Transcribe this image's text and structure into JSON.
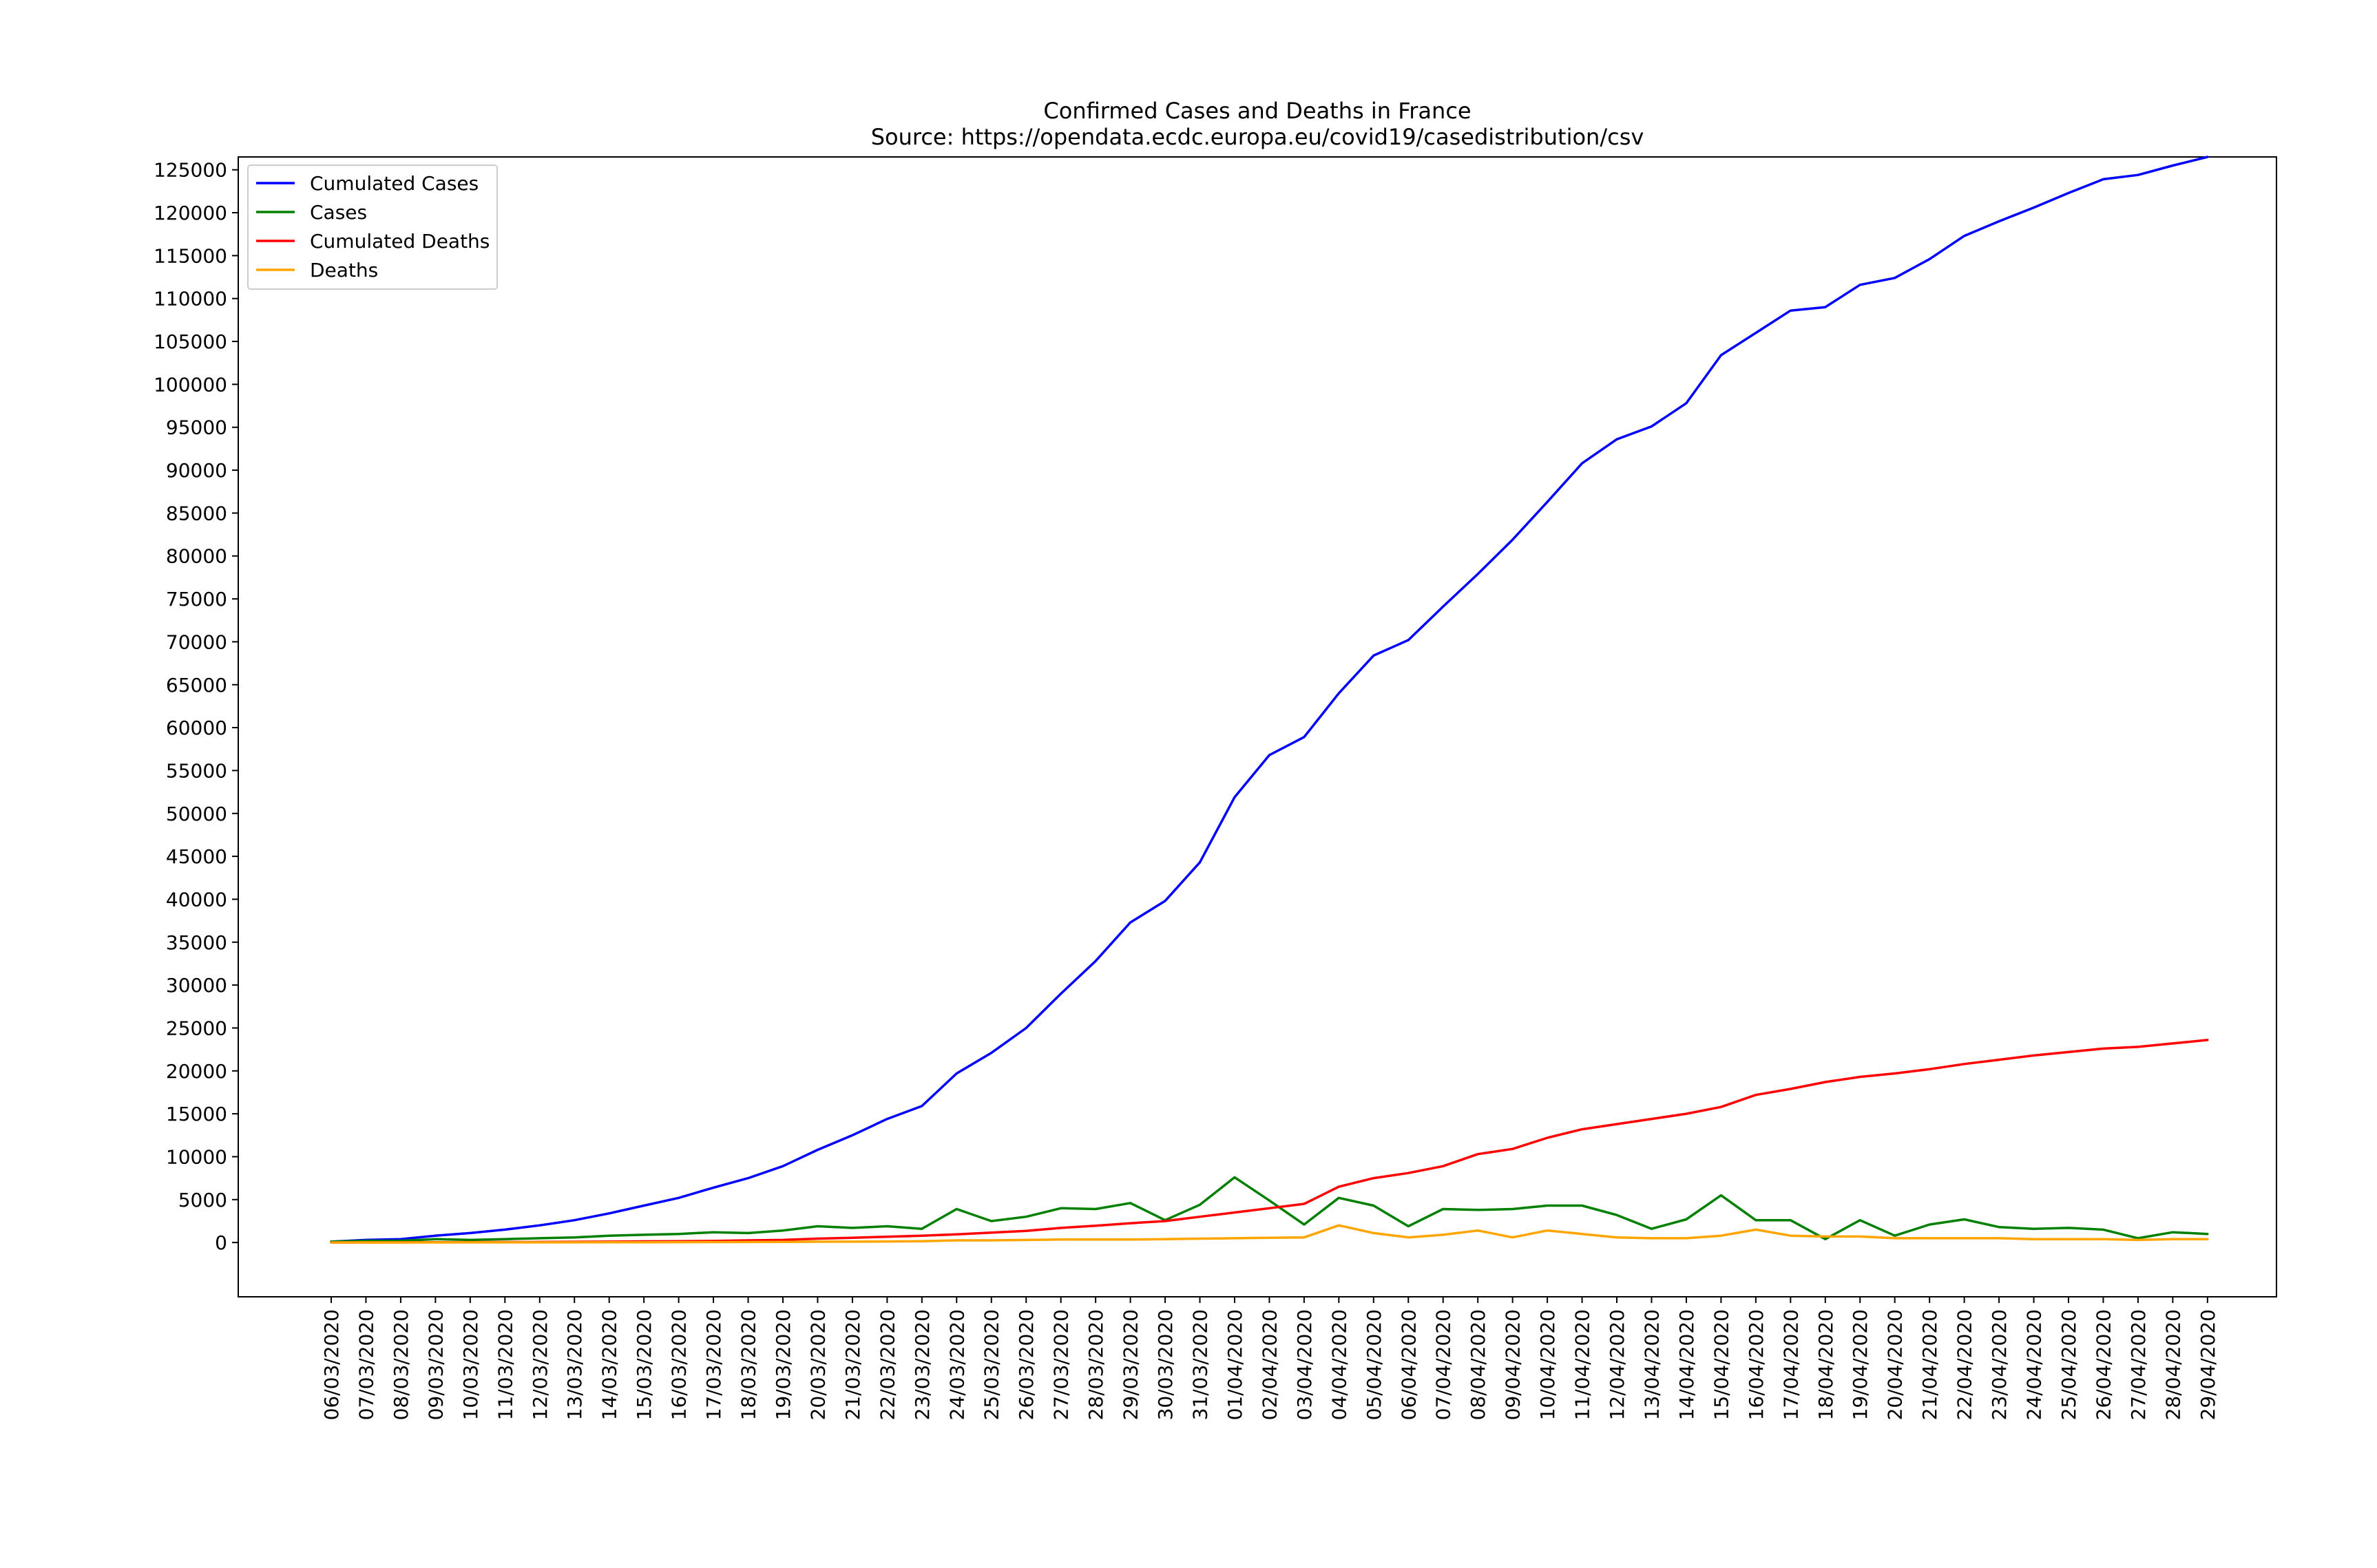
{
  "chart_data": {
    "type": "line",
    "title": "Confirmed Cases and Deaths in France",
    "subtitle": "Source: https://opendata.ecdc.europa.eu/covid19/casedistribution/csv",
    "xlabel": "",
    "ylabel": "",
    "grid": false,
    "legend_position": "top-left",
    "ylim": [
      -6325,
      126500
    ],
    "yticks": [
      0,
      5000,
      10000,
      15000,
      20000,
      25000,
      30000,
      35000,
      40000,
      45000,
      50000,
      55000,
      60000,
      65000,
      70000,
      75000,
      80000,
      85000,
      90000,
      95000,
      100000,
      105000,
      110000,
      115000,
      120000,
      125000
    ],
    "categories": [
      "06/03/2020",
      "07/03/2020",
      "08/03/2020",
      "09/03/2020",
      "10/03/2020",
      "11/03/2020",
      "12/03/2020",
      "13/03/2020",
      "14/03/2020",
      "15/03/2020",
      "16/03/2020",
      "17/03/2020",
      "18/03/2020",
      "19/03/2020",
      "20/03/2020",
      "21/03/2020",
      "22/03/2020",
      "23/03/2020",
      "24/03/2020",
      "25/03/2020",
      "26/03/2020",
      "27/03/2020",
      "28/03/2020",
      "29/03/2020",
      "30/03/2020",
      "31/03/2020",
      "01/04/2020",
      "02/04/2020",
      "03/04/2020",
      "04/04/2020",
      "05/04/2020",
      "06/04/2020",
      "07/04/2020",
      "08/04/2020",
      "09/04/2020",
      "10/04/2020",
      "11/04/2020",
      "12/04/2020",
      "13/04/2020",
      "14/04/2020",
      "15/04/2020",
      "16/04/2020",
      "17/04/2020",
      "18/04/2020",
      "19/04/2020",
      "20/04/2020",
      "21/04/2020",
      "22/04/2020",
      "23/04/2020",
      "24/04/2020",
      "25/04/2020",
      "26/04/2020",
      "27/04/2020",
      "28/04/2020",
      "29/04/2020"
    ],
    "series": [
      {
        "name": "Cumulated Cases",
        "color": "#0000ff",
        "values": [
          100,
          300,
          400,
          800,
          1100,
          1500,
          2000,
          2600,
          3400,
          4300,
          5200,
          6400,
          7500,
          8900,
          10800,
          12500,
          14400,
          15900,
          19700,
          22100,
          25000,
          29000,
          32800,
          37300,
          39800,
          44300,
          51900,
          56800,
          58900,
          64000,
          68400,
          70200,
          74100,
          77900,
          81900,
          86300,
          90800,
          93600,
          95100,
          97800,
          103400,
          106000,
          108600,
          109000,
          111600,
          112400,
          114600,
          117300,
          119000,
          120600,
          122300,
          123900,
          124400,
          125500,
          126500
        ]
      },
      {
        "name": "Cases",
        "color": "#008000",
        "values": [
          100,
          200,
          200,
          400,
          300,
          400,
          500,
          600,
          800,
          900,
          1000,
          1200,
          1100,
          1400,
          1900,
          1700,
          1900,
          1600,
          3900,
          2500,
          3000,
          4000,
          3900,
          4600,
          2600,
          4400,
          7600,
          4900,
          2100,
          5200,
          4300,
          1900,
          3900,
          3800,
          3900,
          4300,
          4300,
          3200,
          1600,
          2700,
          5500,
          2600,
          2600,
          400,
          2600,
          800,
          2100,
          2700,
          1800,
          1600,
          1700,
          1500,
          500,
          1200,
          1000
        ]
      },
      {
        "name": "Cumulated Deaths",
        "color": "#ff0000",
        "values": [
          0,
          10,
          20,
          30,
          40,
          50,
          60,
          80,
          100,
          130,
          150,
          180,
          250,
          300,
          450,
          550,
          680,
          800,
          950,
          1150,
          1350,
          1700,
          1950,
          2250,
          2500,
          3000,
          3500,
          4000,
          4500,
          6500,
          7500,
          8100,
          8900,
          10300,
          10900,
          12200,
          13200,
          13800,
          14400,
          15000,
          15800,
          17200,
          17900,
          18700,
          19300,
          19700,
          20200,
          20800,
          21300,
          21800,
          22200,
          22600,
          22800,
          23200,
          23600
        ]
      },
      {
        "name": "Deaths",
        "color": "#ffa500",
        "values": [
          0,
          10,
          10,
          10,
          20,
          20,
          20,
          20,
          30,
          30,
          40,
          50,
          60,
          70,
          100,
          100,
          120,
          150,
          250,
          250,
          300,
          350,
          350,
          350,
          400,
          450,
          500,
          550,
          600,
          2000,
          1100,
          600,
          900,
          1400,
          600,
          1400,
          1000,
          600,
          500,
          500,
          800,
          1500,
          800,
          700,
          700,
          500,
          500,
          500,
          500,
          400,
          400,
          400,
          300,
          400,
          400
        ]
      }
    ]
  }
}
